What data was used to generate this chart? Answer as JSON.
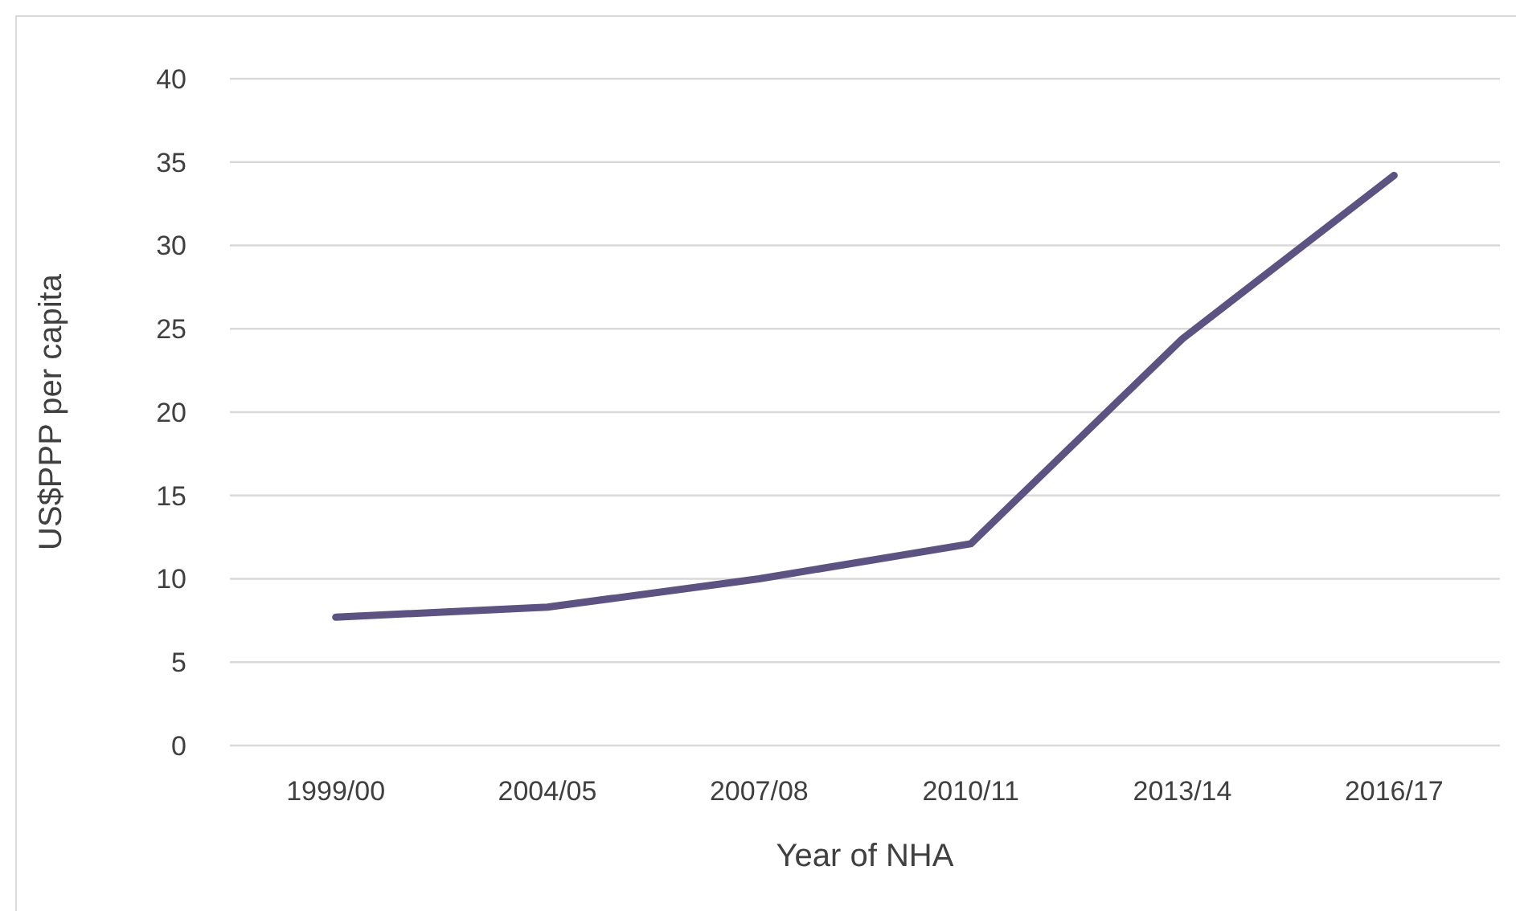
{
  "chart_data": {
    "type": "line",
    "xlabel": "Year of NHA",
    "ylabel": "US$PPP per capita",
    "categories": [
      "1999/00",
      "2004/05",
      "2007/08",
      "2010/11",
      "2013/14",
      "2016/17"
    ],
    "series": [
      {
        "color": "#5c5382",
        "values": [
          7.7,
          8.3,
          10.0,
          12.1,
          24.4,
          34.2
        ]
      }
    ],
    "ylim": [
      0,
      40
    ],
    "yticks": [
      0,
      5,
      10,
      15,
      20,
      25,
      30,
      35,
      40
    ],
    "grid": "y",
    "marker": "none",
    "line_style": "solid"
  }
}
